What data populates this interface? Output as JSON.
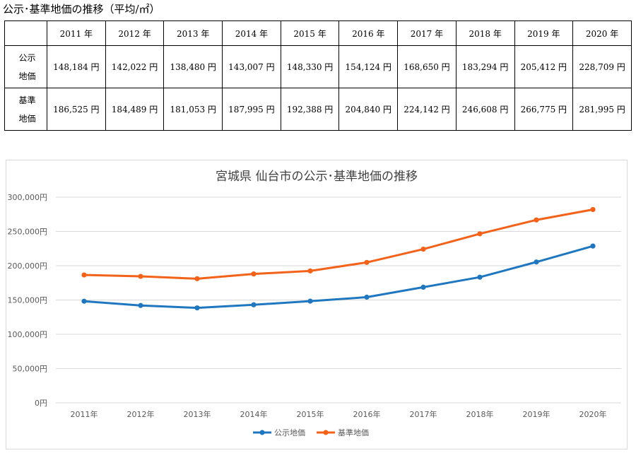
{
  "caption": "公示･基準地価の推移（平均/㎡）",
  "table": {
    "corner": "",
    "years": [
      "2011 年",
      "2012 年",
      "2013 年",
      "2014 年",
      "2015 年",
      "2016 年",
      "2017 年",
      "2018 年",
      "2019 年",
      "2020 年"
    ],
    "rows": [
      {
        "label_top": "公示",
        "label_bottom": "地価",
        "values": [
          "148,184 円",
          "142,022 円",
          "138,480 円",
          "143,007 円",
          "148,330 円",
          "154,124 円",
          "168,650 円",
          "183,294 円",
          "205,412 円",
          "228,709 円"
        ]
      },
      {
        "label_top": "基準",
        "label_bottom": "地価",
        "values": [
          "186,525 円",
          "184,489 円",
          "181,053 円",
          "187,995 円",
          "192,388 円",
          "204,840 円",
          "224,142 円",
          "246,608 円",
          "266,775 円",
          "281,995 円"
        ]
      }
    ]
  },
  "chart_data": {
    "type": "line",
    "title": "宮城県 仙台市の公示･基準地価の推移",
    "xlabel": "",
    "ylabel": "",
    "categories": [
      "2011年",
      "2012年",
      "2013年",
      "2014年",
      "2015年",
      "2016年",
      "2017年",
      "2018年",
      "2019年",
      "2020年"
    ],
    "y_ticks": [
      "0円",
      "50,000円",
      "100,000円",
      "150,000円",
      "200,000円",
      "250,000円",
      "300,000円"
    ],
    "ylim": [
      0,
      300000
    ],
    "grid": true,
    "legend_position": "bottom",
    "series": [
      {
        "name": "公示地価",
        "color": "#1f77c0",
        "values": [
          148184,
          142022,
          138480,
          143007,
          148330,
          154124,
          168650,
          183294,
          205412,
          228709
        ]
      },
      {
        "name": "基準地価",
        "color": "#f4621a",
        "values": [
          186525,
          184489,
          181053,
          187995,
          192388,
          204840,
          224142,
          246608,
          266775,
          281995
        ]
      }
    ]
  }
}
